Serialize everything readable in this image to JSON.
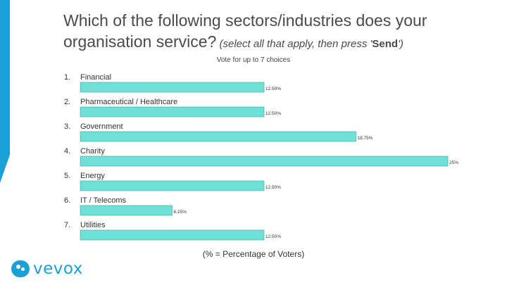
{
  "slide": {
    "title_main": "Which of the following sectors/industries does your organisation service?",
    "title_hint_before": " (select all that apply, then press '",
    "title_hint_send": "Send",
    "title_hint_after": "')",
    "subtitle": "Vote for up to 7 choices",
    "footnote": "(% = Percentage of Voters)"
  },
  "brand": {
    "name": "vevox",
    "color": "#1aa0d8"
  },
  "chart_data": {
    "type": "bar",
    "orientation": "horizontal",
    "categories": [
      "Financial",
      "Pharmaceutical / Healthcare",
      "Government",
      "Charity",
      "Energy",
      "IT / Telecoms",
      "Utilities"
    ],
    "numbers": [
      "1.",
      "2.",
      "3.",
      "4.",
      "5.",
      "6.",
      "7."
    ],
    "values": [
      12.5,
      12.5,
      18.75,
      25,
      12.5,
      6.25,
      12.5
    ],
    "value_labels": [
      "12.50%",
      "12.50%",
      "18.75%",
      "25%",
      "12.50%",
      "6.25%",
      "12.50%"
    ],
    "xlim": [
      0,
      25
    ],
    "unit": "% of voters",
    "bar_color": "#6fe0d6"
  }
}
